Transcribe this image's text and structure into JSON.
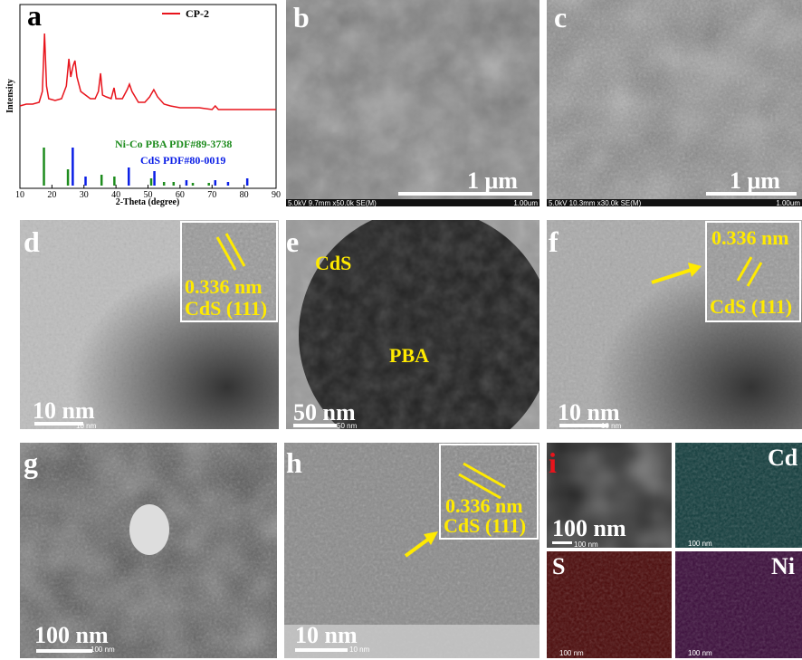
{
  "chart_data": {
    "type": "xrd",
    "xlabel": "2-Theta (degree)",
    "ylabel": "Intensity",
    "xlim": [
      10,
      90
    ],
    "xticks": [
      10,
      20,
      30,
      40,
      50,
      60,
      70,
      80,
      90
    ],
    "ylim": [
      0,
      100
    ],
    "series": [
      {
        "name": "CP-2",
        "color": "#e8141c",
        "style": "line",
        "x": [
          10,
          12,
          14,
          16,
          17,
          17.7,
          18.3,
          19,
          21,
          23,
          24.5,
          25.3,
          25.9,
          26.6,
          27.2,
          27.8,
          29,
          30.5,
          32,
          33.5,
          34.5,
          35.2,
          35.8,
          37,
          38.5,
          39.4,
          40,
          42,
          43.5,
          44.2,
          45,
          47,
          49,
          50.5,
          51.8,
          53,
          55,
          57,
          60,
          63,
          66,
          70,
          71,
          72,
          76,
          80,
          85,
          90
        ],
        "values": [
          44,
          45,
          45,
          46,
          52,
          84,
          55,
          48,
          47,
          48,
          55,
          70,
          60,
          66,
          69,
          60,
          52,
          50,
          48,
          48,
          52,
          62,
          50,
          49,
          48,
          54,
          48,
          48,
          53,
          56,
          52,
          46,
          46,
          49,
          53,
          49,
          45,
          44,
          43,
          43,
          43,
          42,
          44,
          42,
          42,
          42,
          42,
          42
        ]
      },
      {
        "name": "Ni-Co PBA PDF#89-3738",
        "color": "#1e8c1e",
        "style": "stick",
        "x": [
          17.5,
          25,
          35.5,
          39.5,
          51,
          55,
          58,
          64,
          69
        ],
        "values": [
          21,
          9,
          6,
          5,
          4,
          2,
          2,
          1.5,
          1.5
        ]
      },
      {
        "name": "CdS PDF#80-0019",
        "color": "#0a1ee6",
        "style": "stick",
        "x": [
          26.5,
          30.5,
          44,
          52,
          62,
          71,
          75,
          81
        ],
        "values": [
          21,
          5,
          10,
          8,
          3,
          3,
          2,
          4
        ]
      }
    ]
  },
  "panels": {
    "a": {
      "label": "a"
    },
    "b": {
      "label": "b",
      "scale": "1 μm",
      "info": "5.0kV 9.7mm x50.0k SE(M)",
      "bar": "1.00um"
    },
    "c": {
      "label": "c",
      "scale": "1 μm",
      "info": "5.0kV 10.3mm x30.0k SE(M)",
      "bar": "1.00um"
    },
    "d": {
      "label": "d",
      "spacing": "0.336 nm",
      "plane": "CdS (111)",
      "scale": "10 nm",
      "bar": "10 nm"
    },
    "e": {
      "label": "e",
      "cds": "CdS",
      "pba": "PBA",
      "scale": "50 nm",
      "bar": "50 nm"
    },
    "f": {
      "label": "f",
      "spacing": "0.336 nm",
      "plane": "CdS (111)",
      "scale": "10 nm",
      "bar": "10 nm"
    },
    "g": {
      "label": "g",
      "scale": "100 nm",
      "bar": "100 nm"
    },
    "h": {
      "label": "h",
      "spacing": "0.336 nm",
      "plane": "CdS (111)",
      "scale": "10 nm",
      "bar": "10 nm"
    },
    "i": {
      "label": "i",
      "scale": "100 nm",
      "bar": "100 nm",
      "cd": "Cd",
      "s": "S",
      "ni": "Ni",
      "bar_cd": "100 nm",
      "bar_s": "100 nm",
      "bar_ni": "100 nm"
    }
  }
}
